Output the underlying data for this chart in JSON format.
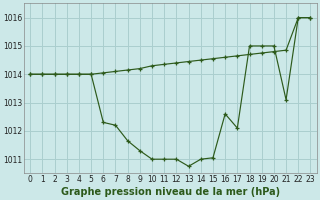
{
  "x": [
    0,
    1,
    2,
    3,
    4,
    5,
    6,
    7,
    8,
    9,
    10,
    11,
    12,
    13,
    14,
    15,
    16,
    17,
    18,
    19,
    20,
    21,
    22,
    23
  ],
  "y_curve": [
    1014.0,
    1014.0,
    1014.0,
    1014.0,
    1014.0,
    1014.0,
    1012.3,
    1012.2,
    1011.65,
    1011.3,
    1011.0,
    1011.0,
    1011.0,
    1010.75,
    1011.0,
    1011.05,
    1012.6,
    1012.1,
    1015.0,
    1015.0,
    1015.0,
    1013.1,
    1016.0,
    1016.0
  ],
  "y_ref": [
    1014.0,
    1014.0,
    1014.0,
    1014.0,
    1014.0,
    1014.0,
    1014.05,
    1014.1,
    1014.15,
    1014.2,
    1014.3,
    1014.35,
    1014.4,
    1014.45,
    1014.5,
    1014.55,
    1014.6,
    1014.65,
    1014.7,
    1014.75,
    1014.8,
    1014.85,
    1016.0,
    1016.0
  ],
  "color": "#2d5a1b",
  "bg_color": "#cce8e8",
  "grid_color": "#aacece",
  "xlabel": "Graphe pression niveau de la mer (hPa)",
  "xlim": [
    -0.5,
    23.5
  ],
  "ylim": [
    1010.5,
    1016.5
  ],
  "yticks": [
    1011,
    1012,
    1013,
    1014,
    1015,
    1016
  ],
  "xticks": [
    0,
    1,
    2,
    3,
    4,
    5,
    6,
    7,
    8,
    9,
    10,
    11,
    12,
    13,
    14,
    15,
    16,
    17,
    18,
    19,
    20,
    21,
    22,
    23
  ],
  "tick_fontsize": 5.5,
  "label_fontsize": 7.0,
  "marker": "+",
  "markersize": 3.5,
  "linewidth": 0.85
}
